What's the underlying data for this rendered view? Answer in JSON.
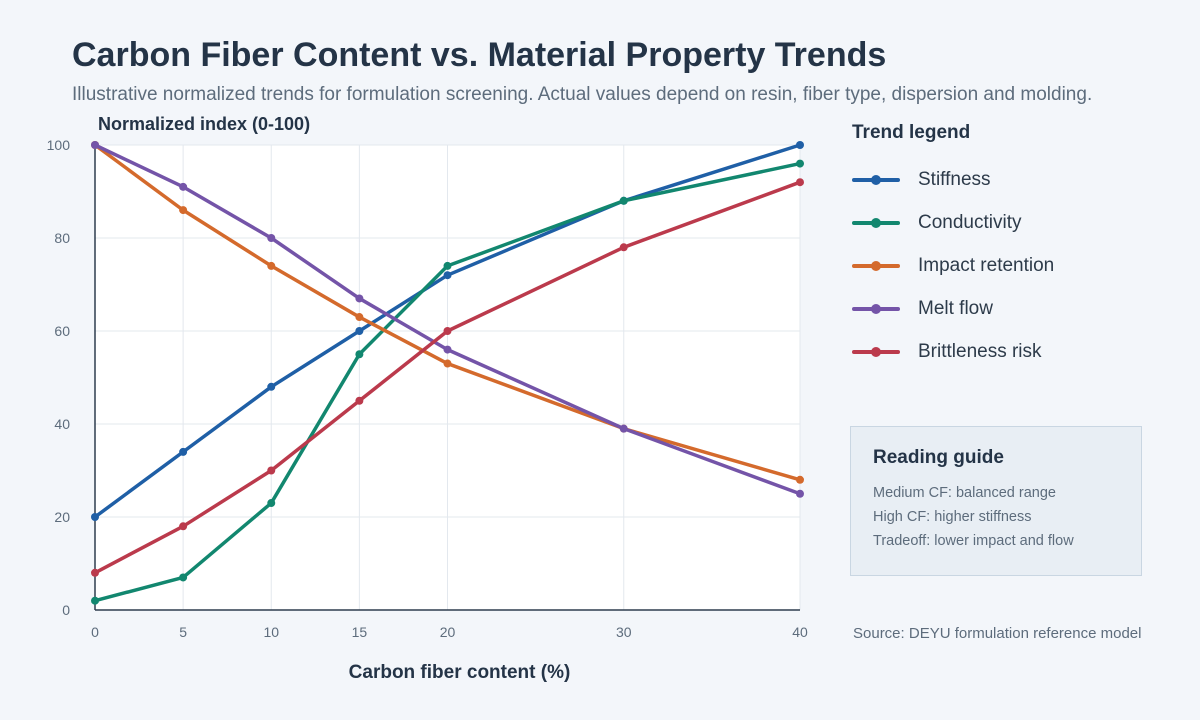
{
  "chart_data": {
    "type": "line",
    "title": "Carbon Fiber Content vs. Material Property Trends",
    "subtitle": "Illustrative normalized trends for formulation screening. Actual values depend on resin, fiber type, dispersion and molding.",
    "xlabel": "Carbon fiber content (%)",
    "ylabel": "Normalized index (0-100)",
    "x": [
      0,
      5,
      10,
      15,
      20,
      30,
      40
    ],
    "xlim": [
      0,
      40
    ],
    "ylim": [
      0,
      100
    ],
    "xticks": [
      0,
      5,
      10,
      15,
      20,
      30,
      40
    ],
    "yticks": [
      0,
      20,
      40,
      60,
      80,
      100
    ],
    "grid": true,
    "legend_title": "Trend legend",
    "legend_position": "right",
    "series": [
      {
        "name": "Stiffness",
        "color": "#1f5fa6",
        "values": [
          20,
          34,
          48,
          60,
          72,
          88,
          100
        ]
      },
      {
        "name": "Conductivity",
        "color": "#12876f",
        "values": [
          2,
          7,
          23,
          55,
          74,
          88,
          96
        ]
      },
      {
        "name": "Impact retention",
        "color": "#d46a2c",
        "values": [
          100,
          86,
          74,
          63,
          53,
          39,
          28
        ]
      },
      {
        "name": "Melt flow",
        "color": "#7454a8",
        "values": [
          100,
          91,
          80,
          67,
          56,
          39,
          25
        ]
      },
      {
        "name": "Brittleness risk",
        "color": "#bb3a4c",
        "values": [
          8,
          18,
          30,
          45,
          60,
          78,
          92
        ]
      }
    ]
  },
  "guide": {
    "title": "Reading guide",
    "lines": [
      "Medium CF: balanced range",
      "High CF: higher stiffness",
      "Tradeoff: lower impact and flow"
    ]
  },
  "source": "Source: DEYU formulation reference model"
}
